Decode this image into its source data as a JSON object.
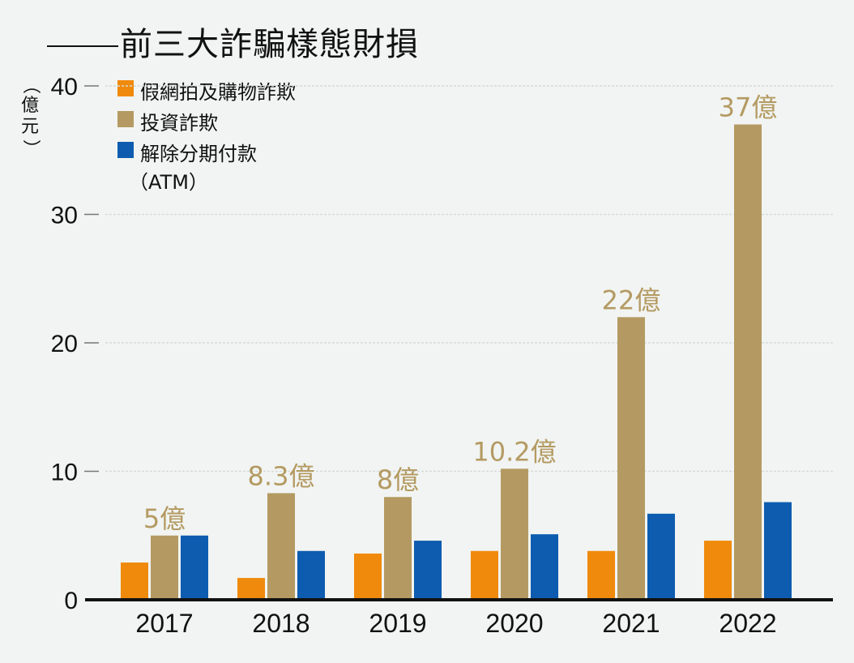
{
  "chart_data": {
    "type": "bar",
    "title": "前三大詐騙樣態財損",
    "ylabel": "（億元）",
    "xlabel": "",
    "ylim": [
      0,
      40
    ],
    "yticks": [
      0,
      10,
      20,
      30,
      40
    ],
    "grid": true,
    "legend_position": "top-left",
    "categories": [
      "2017",
      "2018",
      "2019",
      "2020",
      "2021",
      "2022"
    ],
    "series": [
      {
        "name": "假網拍及購物詐欺",
        "color": "#f08a0c",
        "values": [
          2.9,
          1.7,
          3.6,
          3.8,
          3.8,
          4.6
        ]
      },
      {
        "name": "投資詐欺",
        "color": "#b49a62",
        "values": [
          5,
          8.3,
          8,
          10.2,
          22,
          37
        ]
      },
      {
        "name": "解除分期付款（ATM）",
        "color": "#0d5cb0",
        "values": [
          5.0,
          3.8,
          4.6,
          5.1,
          6.7,
          7.6
        ]
      }
    ],
    "annotations": {
      "series_index": 1,
      "labels": [
        "5億",
        "8.3億",
        "8億",
        "10.2億",
        "22億",
        "37億"
      ],
      "color": "#b49a62"
    }
  },
  "title_text": "前三大詐騙樣態財損",
  "unit_label": "（億元）",
  "legend": [
    {
      "label": "假網拍及購物詐欺",
      "color": "#f08a0c"
    },
    {
      "label": "投資詐欺",
      "color": "#b49a62"
    },
    {
      "label": "解除分期付款",
      "sub": "（ATM）",
      "color": "#0d5cb0"
    }
  ]
}
